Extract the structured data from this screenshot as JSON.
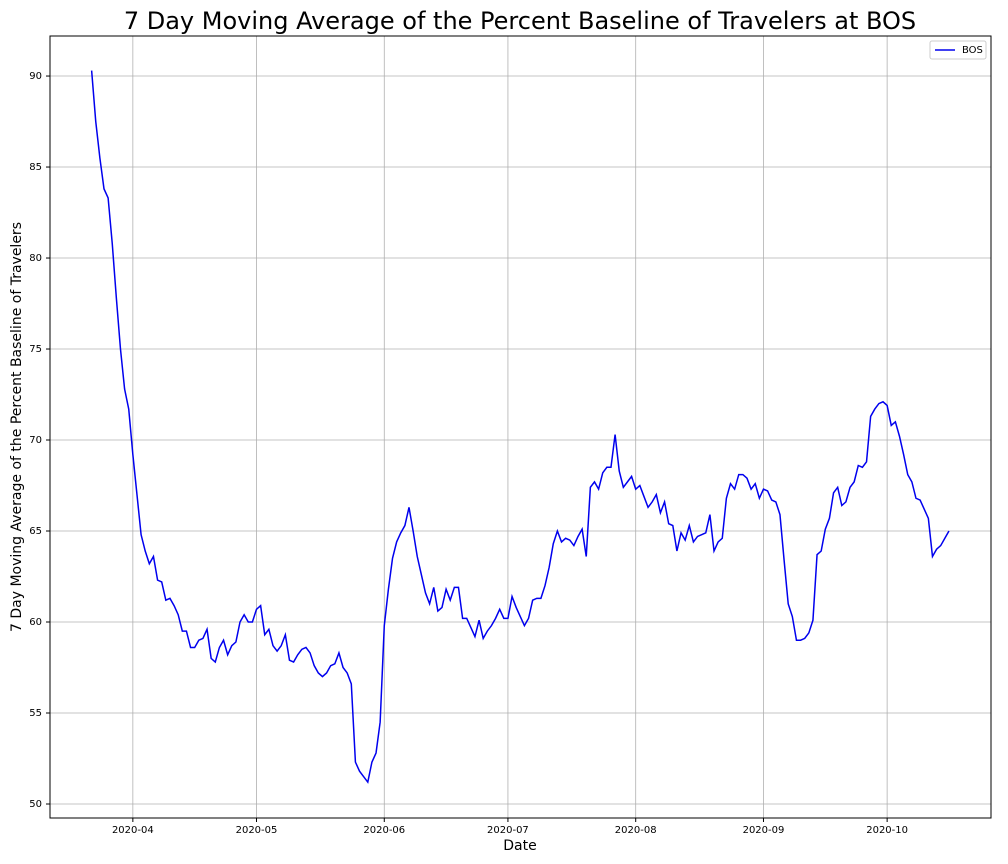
{
  "chart_data": {
    "type": "line",
    "title": "7 Day Moving Average of the Percent Baseline of Travelers at BOS",
    "x_label": "Date",
    "y_label": "7 Day Moving Average of the Percent Baseline of Travelers",
    "x": [
      81,
      82,
      83,
      84,
      85,
      86,
      87,
      88,
      89,
      90,
      91,
      92,
      93,
      94,
      95,
      96,
      97,
      98,
      99,
      100,
      101,
      102,
      103,
      104,
      105,
      106,
      107,
      108,
      109,
      110,
      111,
      112,
      113,
      114,
      115,
      116,
      117,
      118,
      119,
      120,
      121,
      122,
      123,
      124,
      125,
      126,
      127,
      128,
      129,
      130,
      131,
      132,
      133,
      134,
      135,
      136,
      137,
      138,
      139,
      140,
      141,
      142,
      143,
      144,
      145,
      146,
      147,
      148,
      149,
      150,
      151,
      152,
      153,
      154,
      155,
      156,
      157,
      158,
      159,
      160,
      161,
      162,
      163,
      164,
      165,
      166,
      167,
      168,
      169,
      170,
      171,
      172,
      173,
      174,
      175,
      176,
      177,
      178,
      179,
      180,
      181,
      182,
      183,
      184,
      185,
      186,
      187,
      188,
      189,
      190,
      191,
      192,
      193,
      194,
      195,
      196,
      197,
      198,
      199,
      200,
      201,
      202,
      203,
      204,
      205,
      206,
      207,
      208,
      209,
      210,
      211,
      212,
      213,
      214,
      215,
      216,
      217,
      218,
      219,
      220,
      221,
      222,
      223,
      224,
      225,
      226,
      227,
      228,
      229,
      230,
      231,
      232,
      233,
      234,
      235,
      236,
      237,
      238,
      239,
      240,
      241,
      242,
      243,
      244,
      245,
      246,
      247,
      248,
      249,
      250,
      251,
      252,
      253,
      254,
      255,
      256,
      257,
      258,
      259,
      260,
      261,
      262,
      263,
      264,
      265,
      266,
      267,
      268,
      269,
      270,
      271,
      272,
      273,
      274,
      275,
      276,
      277,
      278,
      279,
      280,
      281,
      282,
      283,
      284,
      285,
      286,
      287,
      288,
      289
    ],
    "series": [
      {
        "name": "BOS",
        "color": "#0000ee",
        "values": [
          90.3,
          87.5,
          85.5,
          83.8,
          83.3,
          80.8,
          77.8,
          75,
          72.8,
          71.7,
          69.2,
          67,
          64.8,
          63.9,
          63.2,
          63.6,
          62.3,
          62.2,
          61.2,
          61.3,
          60.9,
          60.4,
          59.5,
          59.5,
          58.6,
          58.6,
          59,
          59.1,
          59.6,
          58,
          57.8,
          58.6,
          59,
          58.2,
          58.7,
          58.9,
          60,
          60.4,
          60,
          60,
          60.7,
          60.9,
          59.3,
          59.6,
          58.7,
          58.4,
          58.7,
          59.3,
          57.9,
          57.8,
          58.2,
          58.5,
          58.6,
          58.3,
          57.6,
          57.2,
          57,
          57.2,
          57.6,
          57.7,
          58.3,
          57.5,
          57.2,
          56.6,
          52.3,
          51.8,
          51.5,
          51.2,
          52.3,
          52.8,
          54.5,
          59.8,
          61.8,
          63.5,
          64.4,
          64.9,
          65.3,
          66.3,
          65,
          63.6,
          62.6,
          61.6,
          61,
          61.9,
          60.6,
          60.8,
          61.8,
          61.2,
          61.9,
          61.9,
          60.2,
          60.2,
          59.7,
          59.2,
          60.1,
          59.1,
          59.5,
          59.8,
          60.2,
          60.7,
          60.2,
          60.2,
          61.4,
          60.8,
          60.3,
          59.8,
          60.2,
          61.2,
          61.3,
          61.3,
          62,
          63,
          64.3,
          65,
          64.4,
          64.6,
          64.5,
          64.2,
          64.7,
          65.1,
          63.6,
          67.4,
          67.7,
          67.3,
          68.2,
          68.5,
          68.5,
          70.3,
          68.3,
          67.4,
          67.7,
          68,
          67.3,
          67.5,
          66.9,
          66.3,
          66.6,
          67,
          66,
          66.6,
          65.4,
          65.3,
          63.9,
          64.9,
          64.5,
          65.3,
          64.4,
          64.7,
          64.8,
          64.9,
          65.9,
          63.9,
          64.4,
          64.6,
          66.8,
          67.6,
          67.3,
          68.1,
          68.1,
          67.9,
          67.3,
          67.6,
          66.8,
          67.3,
          67.2,
          66.7,
          66.6,
          65.9,
          63.4,
          61,
          60.3,
          59,
          59,
          59.1,
          59.4,
          60.1,
          63.7,
          63.9,
          65.1,
          65.7,
          67.1,
          67.4,
          66.4,
          66.6,
          67.4,
          67.7,
          68.6,
          68.5,
          68.8,
          71.3,
          71.7,
          72,
          72.1,
          71.9,
          70.8,
          71,
          70.2,
          69.2,
          68.1,
          67.7,
          66.8,
          66.7,
          66.2,
          65.7,
          63.6,
          64,
          64.2,
          64.6,
          65
        ]
      }
    ],
    "xlim": [
      70.9,
      299.2
    ],
    "xticks": [
      {
        "value": 91,
        "label": "2020-04"
      },
      {
        "value": 121,
        "label": "2020-05"
      },
      {
        "value": 152,
        "label": "2020-06"
      },
      {
        "value": 182,
        "label": "2020-07"
      },
      {
        "value": 213,
        "label": "2020-08"
      },
      {
        "value": 244,
        "label": "2020-09"
      },
      {
        "value": 274,
        "label": "2020-10"
      }
    ],
    "ylim": [
      49.23,
      92.2
    ],
    "yticks": [
      50,
      55,
      60,
      65,
      70,
      75,
      80,
      85,
      90
    ],
    "grid": true,
    "legend": "upper right"
  }
}
